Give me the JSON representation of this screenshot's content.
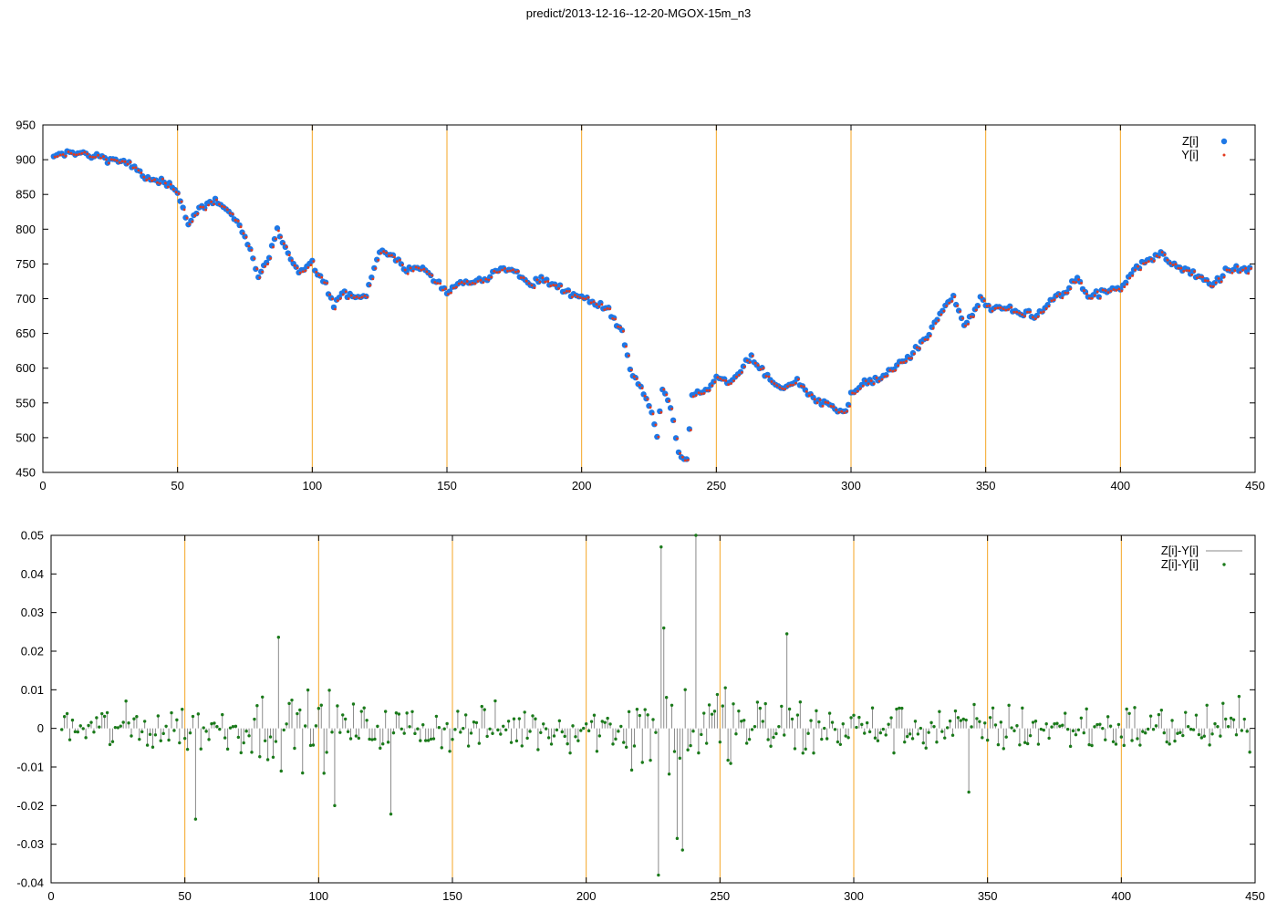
{
  "title": "predict/2013-12-16--12-20-MGOX-15m_n3",
  "colors": {
    "z": "#1e78e6",
    "y": "#e23a1e",
    "diff_line": "#8a8a8a",
    "diff_point": "#1a7a1a",
    "grid": "#f5a623"
  },
  "chart_data": [
    {
      "type": "scatter",
      "xlim": [
        0,
        450
      ],
      "ylim": [
        450,
        950
      ],
      "xticks": [
        "0",
        "50",
        "100",
        "150",
        "200",
        "250",
        "300",
        "350",
        "400",
        "450"
      ],
      "yticks": [
        "450",
        "500",
        "550",
        "600",
        "650",
        "700",
        "750",
        "800",
        "850",
        "900",
        "950"
      ],
      "grid": "vertical lines at x ticks",
      "legend": "top-right",
      "series": [
        {
          "name": "Z[i]",
          "marker": "circle"
        },
        {
          "name": "Y[i]",
          "marker": "dot"
        }
      ],
      "anchors": [
        [
          4,
          902
        ],
        [
          10,
          912
        ],
        [
          20,
          905
        ],
        [
          30,
          898
        ],
        [
          40,
          870
        ],
        [
          45,
          866
        ],
        [
          50,
          855
        ],
        [
          54,
          810
        ],
        [
          58,
          830
        ],
        [
          65,
          842
        ],
        [
          70,
          822
        ],
        [
          75,
          790
        ],
        [
          80,
          730
        ],
        [
          84,
          760
        ],
        [
          87,
          798
        ],
        [
          90,
          770
        ],
        [
          95,
          740
        ],
        [
          100,
          752
        ],
        [
          105,
          722
        ],
        [
          108,
          688
        ],
        [
          112,
          712
        ],
        [
          116,
          700
        ],
        [
          120,
          705
        ],
        [
          125,
          770
        ],
        [
          130,
          760
        ],
        [
          135,
          742
        ],
        [
          140,
          745
        ],
        [
          145,
          728
        ],
        [
          150,
          710
        ],
        [
          155,
          725
        ],
        [
          160,
          728
        ],
        [
          165,
          730
        ],
        [
          170,
          745
        ],
        [
          175,
          742
        ],
        [
          180,
          720
        ],
        [
          185,
          726
        ],
        [
          190,
          720
        ],
        [
          195,
          712
        ],
        [
          200,
          702
        ],
        [
          205,
          695
        ],
        [
          210,
          685
        ],
        [
          215,
          650
        ],
        [
          218,
          600
        ],
        [
          222,
          570
        ],
        [
          226,
          540
        ],
        [
          228,
          500
        ],
        [
          230,
          570
        ],
        [
          233,
          545
        ],
        [
          236,
          475
        ],
        [
          239,
          470
        ],
        [
          241,
          560
        ],
        [
          245,
          565
        ],
        [
          250,
          585
        ],
        [
          255,
          582
        ],
        [
          260,
          600
        ],
        [
          263,
          620
        ],
        [
          266,
          600
        ],
        [
          270,
          580
        ],
        [
          275,
          572
        ],
        [
          280,
          582
        ],
        [
          285,
          560
        ],
        [
          290,
          548
        ],
        [
          295,
          540
        ],
        [
          298,
          535
        ],
        [
          300,
          560
        ],
        [
          305,
          580
        ],
        [
          310,
          580
        ],
        [
          315,
          600
        ],
        [
          320,
          610
        ],
        [
          325,
          630
        ],
        [
          330,
          655
        ],
        [
          335,
          690
        ],
        [
          338,
          705
        ],
        [
          342,
          660
        ],
        [
          345,
          675
        ],
        [
          348,
          698
        ],
        [
          352,
          685
        ],
        [
          358,
          690
        ],
        [
          364,
          680
        ],
        [
          368,
          672
        ],
        [
          372,
          690
        ],
        [
          376,
          702
        ],
        [
          380,
          712
        ],
        [
          384,
          730
        ],
        [
          388,
          702
        ],
        [
          394,
          712
        ],
        [
          400,
          715
        ],
        [
          405,
          740
        ],
        [
          410,
          755
        ],
        [
          415,
          765
        ],
        [
          420,
          748
        ],
        [
          425,
          740
        ],
        [
          430,
          730
        ],
        [
          435,
          720
        ],
        [
          440,
          742
        ],
        [
          445,
          742
        ],
        [
          448,
          742
        ]
      ],
      "xlabel": "",
      "ylabel": ""
    },
    {
      "type": "scatter",
      "xlim": [
        0,
        450
      ],
      "ylim": [
        -0.04,
        0.05
      ],
      "xticks": [
        "0",
        "50",
        "100",
        "150",
        "200",
        "250",
        "300",
        "350",
        "400",
        "450"
      ],
      "yticks": [
        "-0.04",
        "-0.03",
        "-0.02",
        "-0.01",
        "0",
        "0.01",
        "0.02",
        "0.03",
        "0.04",
        "0.05"
      ],
      "grid": "vertical lines at x ticks",
      "legend": "top-right",
      "series": [
        {
          "name": "Z[i]-Y[i]",
          "marker": "line"
        },
        {
          "name": "Z[i]-Y[i]",
          "marker": "dot"
        }
      ],
      "notable_points": [
        [
          54,
          -0.0235
        ],
        [
          85,
          0.0236
        ],
        [
          106,
          -0.02
        ],
        [
          127,
          -0.0222
        ],
        [
          227,
          -0.038
        ],
        [
          228,
          0.047
        ],
        [
          229,
          0.026
        ],
        [
          234,
          -0.0285
        ],
        [
          236,
          -0.0315
        ],
        [
          241,
          0.05
        ],
        [
          275,
          0.0245
        ],
        [
          343,
          -0.0165
        ]
      ],
      "xlabel": "",
      "ylabel": ""
    }
  ]
}
